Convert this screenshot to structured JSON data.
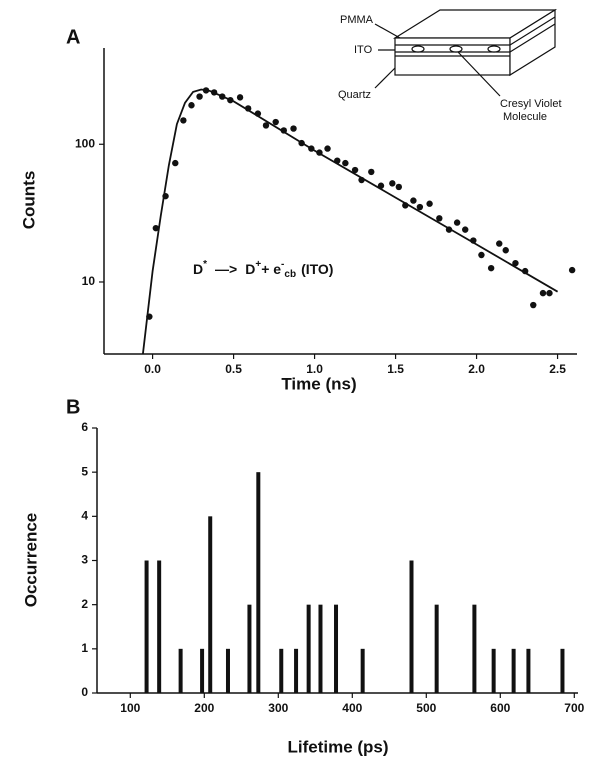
{
  "chart_data": [
    {
      "type": "scatter",
      "panel": "A",
      "ylabel": "Counts",
      "xlabel": "Time (ns)",
      "log_y": true,
      "xlim": [
        -0.3,
        2.62
      ],
      "ylim": [
        3,
        500
      ],
      "xticks": [
        {
          "value": 0,
          "label": "0.0"
        },
        0.5,
        {
          "value": 1,
          "label": "1.0"
        },
        1.5,
        {
          "value": 2,
          "label": "2.0"
        },
        2.5
      ],
      "yticks": [
        10,
        100
      ],
      "annotation": [
        "D",
        "*",
        "—>",
        "D",
        "+",
        "+ e",
        "-",
        "cb",
        "(ITO)"
      ],
      "inset_labels": [
        "PMMA",
        "ITO",
        "Quartz",
        "Cresyl Violet",
        "Molecule"
      ],
      "series": [
        {
          "type": "scatter",
          "color": "#111111",
          "x": [
            -0.02,
            0.02,
            0.08,
            0.14,
            0.19,
            0.24,
            0.29,
            0.33,
            0.38,
            0.43,
            0.48,
            0.54,
            0.59,
            0.65,
            0.7,
            0.76,
            0.81,
            0.87,
            0.92,
            0.98,
            1.03,
            1.08,
            1.14,
            1.19,
            1.25,
            1.29,
            1.35,
            1.41,
            1.48,
            1.52,
            1.56,
            1.61,
            1.65,
            1.71,
            1.77,
            1.83,
            1.88,
            1.93,
            1.98,
            2.03,
            2.09,
            2.14,
            2.18,
            2.24,
            2.3,
            2.35,
            2.41,
            2.45,
            2.59
          ],
          "values": [
            5.6,
            24.6,
            42,
            73,
            149,
            192,
            222,
            246,
            238,
            222,
            209,
            219,
            182,
            167,
            137,
            145,
            126,
            130,
            102,
            93,
            87,
            93,
            76,
            73,
            65,
            55,
            63,
            50,
            52,
            49,
            36,
            39,
            35,
            37,
            29,
            24,
            27,
            24,
            20,
            15.7,
            12.6,
            19,
            17,
            13.7,
            12,
            6.8,
            8.3,
            8.3,
            12.2
          ]
        },
        {
          "type": "line",
          "color": "#111111",
          "x": [
            -0.06,
            0.0,
            0.05,
            0.1,
            0.15,
            0.2,
            0.25,
            0.3,
            0.35,
            0.5,
            1.0,
            1.5,
            2.0,
            2.5
          ],
          "values": [
            3,
            12,
            30,
            70,
            140,
            200,
            240,
            250,
            245,
            205,
            90,
            41,
            18.7,
            8.5
          ]
        }
      ]
    },
    {
      "type": "bar",
      "panel": "B",
      "ylabel": "Occurrence",
      "xlabel": "Lifetime (ps)",
      "color": "#111111",
      "xlim": [
        55,
        705
      ],
      "ylim": [
        0,
        6
      ],
      "xticks": [
        100,
        200,
        300,
        400,
        500,
        600,
        700
      ],
      "yticks": [
        0,
        1,
        2,
        3,
        4,
        5,
        6
      ],
      "x": [
        122,
        139,
        168,
        197,
        208,
        232,
        261,
        273,
        304,
        324,
        341,
        357,
        378,
        414,
        480,
        514,
        565,
        591,
        618,
        638,
        684
      ],
      "values": [
        3,
        3,
        1,
        1,
        4,
        1,
        2,
        5,
        1,
        1,
        2,
        2,
        2,
        1,
        3,
        2,
        2,
        1,
        1,
        1,
        1
      ]
    }
  ]
}
